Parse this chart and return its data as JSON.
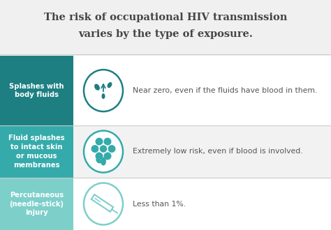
{
  "title_line1": "The risk of occupational HIV transmission",
  "title_line2": "varies by the type of exposure.",
  "background_color": "#f0f0f0",
  "title_color": "#444444",
  "title_fontsize": 10.5,
  "rows": [
    {
      "label": "Splashes with\nbody fluids",
      "description": "Near zero, even if the fluids have blood in them.",
      "left_color": "#1d7f82",
      "row_bg": "#ffffff",
      "icon": "splash"
    },
    {
      "label": "Fluid splashes\nto intact skin\nor mucous\nmembranes",
      "description": "Extremely low risk, even if blood is involved.",
      "left_color": "#35aaaa",
      "row_bg": "#f2f2f2",
      "icon": "eye_flower"
    },
    {
      "label": "Percutaneous\n(needle-stick)\ninjury",
      "description": "Less than 1%.",
      "left_color": "#7dcfca",
      "row_bg": "#ffffff",
      "icon": "needle"
    }
  ],
  "separator_color": "#cccccc",
  "desc_color": "#555555",
  "label_fontsize": 7.2,
  "desc_fontsize": 7.8,
  "icon_border_color_dark": "#1d7f82",
  "icon_border_color_mid": "#35aaaa",
  "icon_border_color_light": "#7dcfca"
}
